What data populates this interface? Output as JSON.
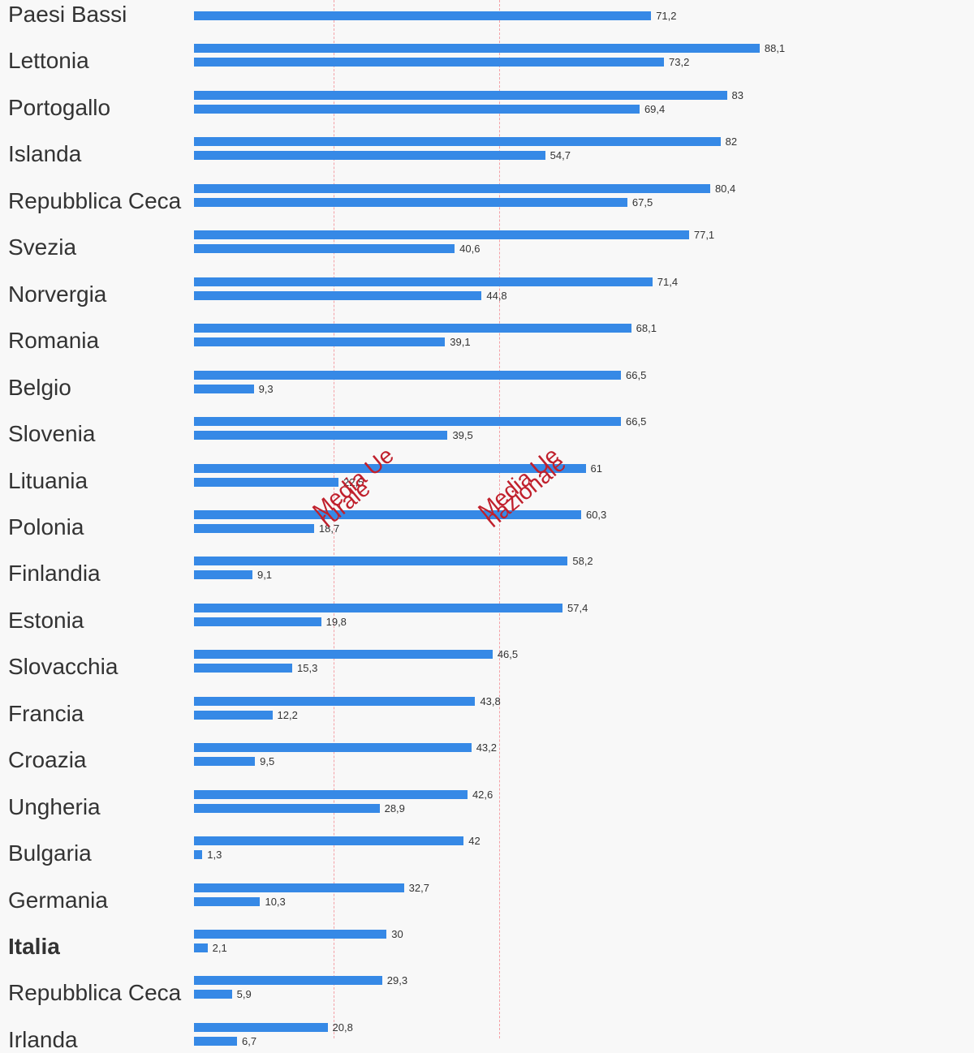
{
  "chart_data": {
    "type": "bar",
    "orientation": "horizontal",
    "bar_color": "#3689e6",
    "ref_color": "#c0202c",
    "reference_lines": [
      {
        "label_top": "Media Ue",
        "label_bottom": "rurale",
        "value": 21.8
      },
      {
        "label_top": "Media Ue",
        "label_bottom": "nazionale",
        "value": 47.5
      }
    ],
    "categories": [
      "Paesi Bassi",
      "Lettonia",
      "Portogallo",
      "Islanda",
      "Repubblica Ceca",
      "Svezia",
      "Norvergia",
      "Romania",
      "Belgio",
      "Slovenia",
      "Lituania",
      "Polonia",
      "Finlandia",
      "Estonia",
      "Slovacchia",
      "Francia",
      "Croazia",
      "Ungheria",
      "Bulgaria",
      "Germania",
      "Italia",
      "Repubblica Ceca",
      "Irlanda"
    ],
    "highlight": "Italia",
    "series": [
      {
        "values": [
          null,
          88.1,
          83,
          82,
          80.4,
          77.1,
          71.4,
          68.1,
          66.5,
          66.5,
          61,
          60.3,
          58.2,
          57.4,
          46.5,
          43.8,
          43.2,
          42.6,
          42,
          32.7,
          30,
          29.3,
          20.8
        ],
        "labels": [
          "",
          "88,1",
          "83",
          "82",
          "80,4",
          "77,1",
          "71,4",
          "68,1",
          "66,5",
          "66,5",
          "61",
          "60,3",
          "58,2",
          "57,4",
          "46,5",
          "43,8",
          "43,2",
          "42,6",
          "42",
          "32,7",
          "30",
          "29,3",
          "20,8"
        ]
      },
      {
        "values": [
          71.2,
          73.2,
          69.4,
          54.7,
          67.5,
          40.6,
          44.8,
          39.1,
          9.3,
          39.5,
          22.5,
          18.7,
          9.1,
          19.8,
          15.3,
          12.2,
          9.5,
          28.9,
          1.3,
          10.3,
          2.1,
          5.9,
          6.7
        ],
        "labels": [
          "71,2",
          "73,2",
          "69,4",
          "54,7",
          "67,5",
          "40,6",
          "44,8",
          "39,1",
          "9,3",
          "39,5",
          "22,5",
          "18,7",
          "9,1",
          "19,8",
          "15,3",
          "12,2",
          "9,5",
          "28,9",
          "1,3",
          "10,3",
          "2,1",
          "5,9",
          "6,7"
        ]
      }
    ]
  }
}
